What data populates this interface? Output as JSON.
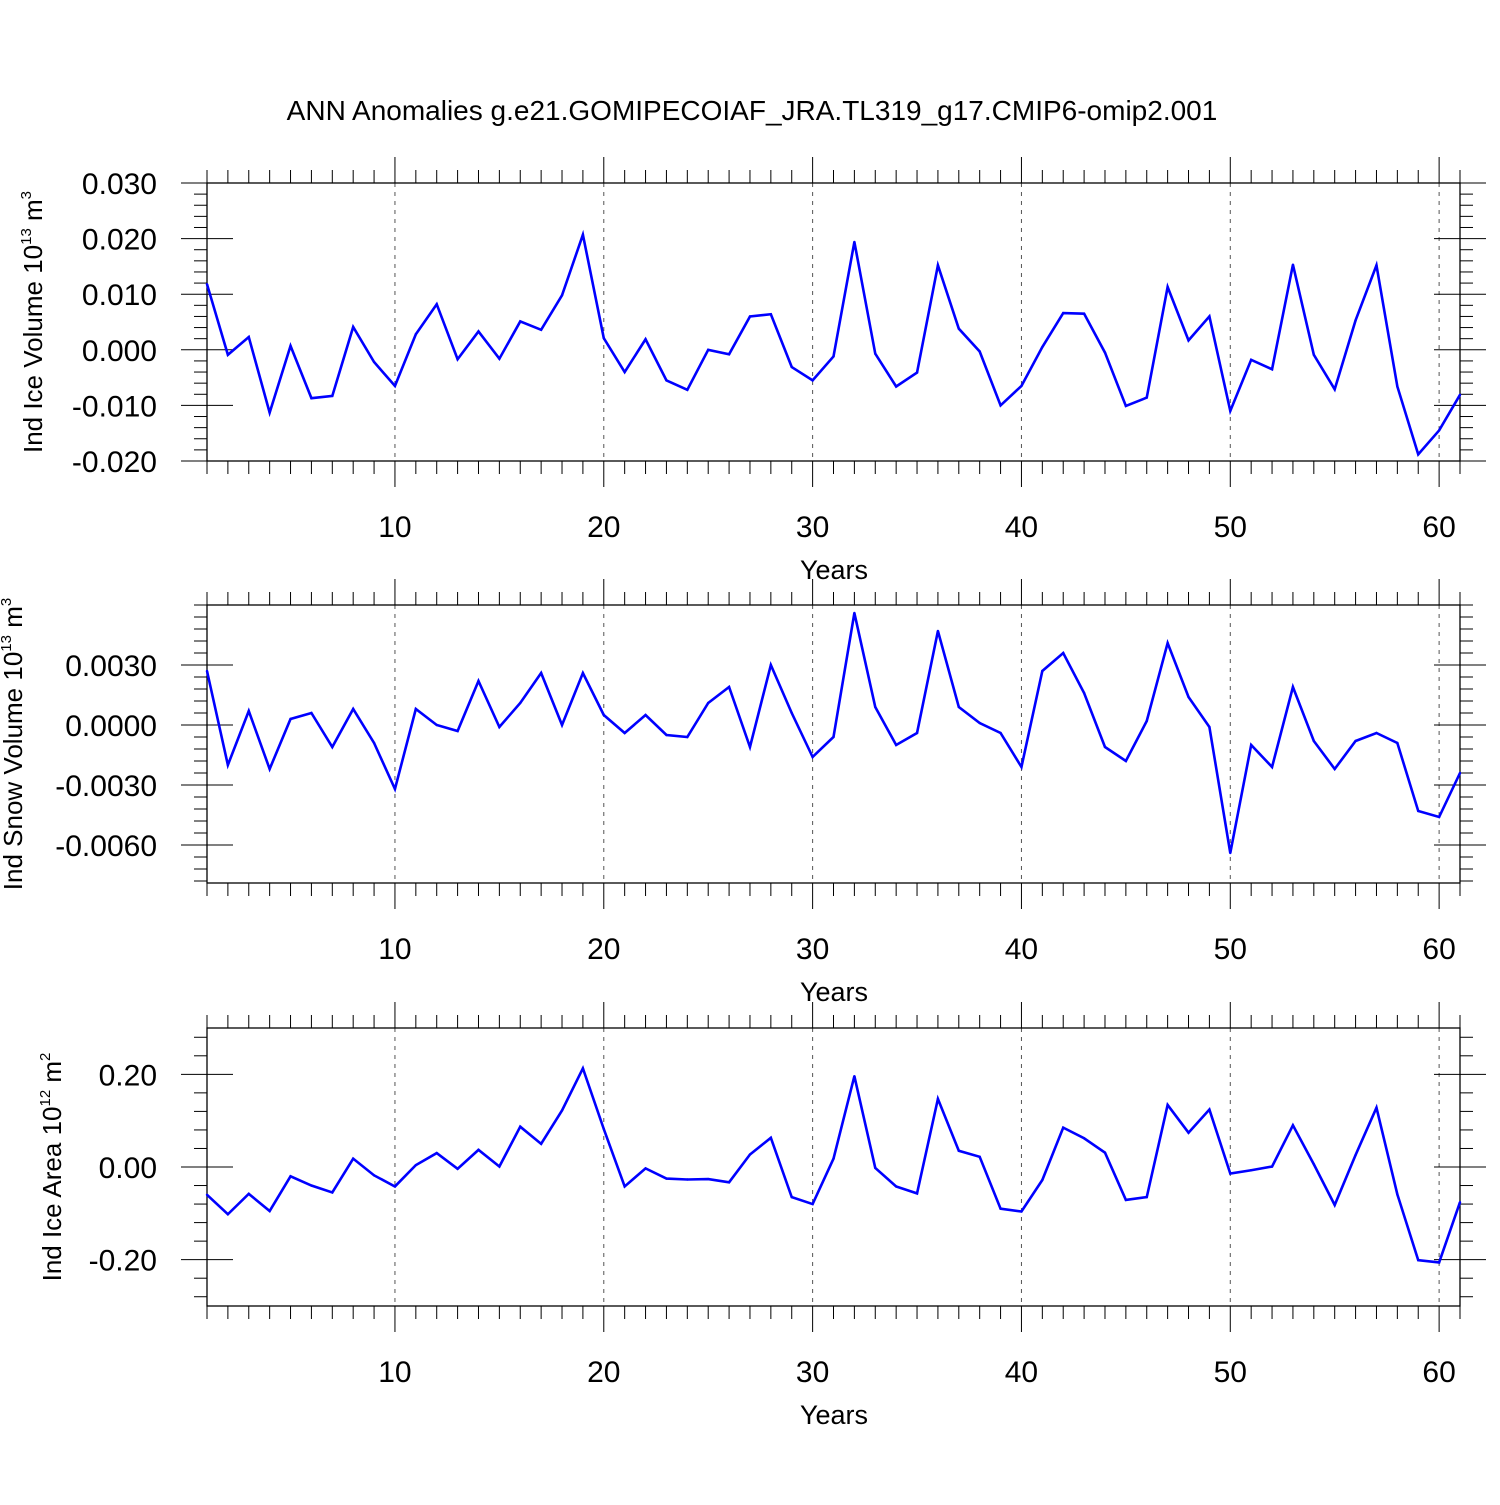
{
  "figure": {
    "title": "ANN Anomalies g.e21.GOMIPECOIAF_JRA.TL319_g17.CMIP6-omip2.001"
  },
  "colors": {
    "series": "#0000ff",
    "axis": "#000000",
    "grid": "#555555"
  },
  "chart_data": [
    {
      "type": "line",
      "xlabel": "Years",
      "ylabel_main": "Ind Ice Volume 10",
      "ylabel_exp": "13",
      "ylabel_unit": " m",
      "ylabel_unit_exp": "3",
      "xlim": [
        1,
        61
      ],
      "ylim": [
        -0.02,
        0.03
      ],
      "xticks": [
        10,
        20,
        30,
        40,
        50,
        60
      ],
      "xtick_labels": [
        "10",
        "20",
        "30",
        "40",
        "50",
        "60"
      ],
      "yticks": [
        -0.02,
        -0.01,
        0.0,
        0.01,
        0.02,
        0.03
      ],
      "ytick_labels": [
        "-0.020",
        "-0.010",
        "0.000",
        "0.010",
        "0.020",
        "0.030"
      ],
      "vertical_dashed_grid_at": [
        10,
        20,
        30,
        40,
        50,
        60
      ],
      "series": [
        {
          "x_start": 1,
          "values": [
            0.0118,
            -0.0009,
            0.0023,
            -0.0113,
            0.0007,
            -0.0087,
            -0.0083,
            0.0041,
            -0.0022,
            -0.0065,
            0.0028,
            0.0082,
            -0.0017,
            0.0033,
            -0.0016,
            0.0051,
            0.0036,
            0.0098,
            0.0207,
            0.0021,
            -0.004,
            0.0019,
            -0.0055,
            -0.0072,
            0.0,
            -0.0008,
            0.006,
            0.0064,
            -0.0031,
            -0.0055,
            -0.0012,
            0.0194,
            -0.0007,
            -0.0066,
            -0.0041,
            0.0152,
            0.0038,
            -0.0003,
            -0.01,
            -0.0065,
            0.0005,
            0.0066,
            0.0065,
            -0.0005,
            -0.0101,
            -0.0086,
            0.0113,
            0.0017,
            0.006,
            -0.011,
            -0.0018,
            -0.0035,
            0.0153,
            -0.0009,
            -0.0071,
            0.0053,
            0.0152,
            -0.0066,
            -0.0188,
            -0.0145,
            -0.0081
          ]
        }
      ]
    },
    {
      "type": "line",
      "xlabel": "Years",
      "ylabel_main": "Ind Snow Volume 10",
      "ylabel_exp": "13",
      "ylabel_unit": " m",
      "ylabel_unit_exp": "3",
      "xlim": [
        1,
        61
      ],
      "ylim": [
        -0.0079,
        0.006
      ],
      "xticks": [
        10,
        20,
        30,
        40,
        50,
        60
      ],
      "xtick_labels": [
        "10",
        "20",
        "30",
        "40",
        "50",
        "60"
      ],
      "yticks": [
        -0.006,
        -0.003,
        0.0,
        0.003
      ],
      "ytick_labels": [
        "-0.0060",
        "-0.0030",
        "0.0000",
        "0.0030"
      ],
      "vertical_dashed_grid_at": [
        10,
        20,
        30,
        40,
        50,
        60
      ],
      "series": [
        {
          "x_start": 1,
          "values": [
            0.0027,
            -0.002,
            0.0007,
            -0.0022,
            0.0003,
            0.0006,
            -0.0011,
            0.0008,
            -0.0009,
            -0.0032,
            0.0008,
            0.0,
            -0.0003,
            0.0022,
            -0.0001,
            0.0011,
            0.0026,
            -0.0,
            0.0026,
            0.0005,
            -0.0004,
            0.0005,
            -0.0005,
            -0.0006,
            0.0011,
            0.0019,
            -0.0011,
            0.003,
            0.0006,
            -0.0016,
            -0.0006,
            0.0056,
            0.0009,
            -0.001,
            -0.0004,
            0.0047,
            0.0009,
            0.0001,
            -0.0004,
            -0.0021,
            0.0027,
            0.0036,
            0.0016,
            -0.0011,
            -0.0018,
            0.0002,
            0.0041,
            0.0014,
            -0.0001,
            -0.0064,
            -0.001,
            -0.0021,
            0.0019,
            -0.0008,
            -0.0022,
            -0.0008,
            -0.0004,
            -0.0009,
            -0.0043,
            -0.0046,
            -0.0024
          ]
        }
      ]
    },
    {
      "type": "line",
      "xlabel": "Years",
      "ylabel_main": "Ind Ice Area 10",
      "ylabel_exp": "12",
      "ylabel_unit": " m",
      "ylabel_unit_exp": "2",
      "xlim": [
        1,
        61
      ],
      "ylim": [
        -0.3,
        0.3
      ],
      "xticks": [
        10,
        20,
        30,
        40,
        50,
        60
      ],
      "xtick_labels": [
        "10",
        "20",
        "30",
        "40",
        "50",
        "60"
      ],
      "yticks": [
        -0.2,
        0.0,
        0.2
      ],
      "ytick_labels": [
        "-0.20",
        "0.00",
        "0.20"
      ],
      "vertical_dashed_grid_at": [
        10,
        20,
        30,
        40,
        50,
        60
      ],
      "series": [
        {
          "x_start": 1,
          "values": [
            -0.06,
            -0.102,
            -0.058,
            -0.095,
            -0.02,
            -0.04,
            -0.055,
            0.018,
            -0.018,
            -0.042,
            0.004,
            0.03,
            -0.004,
            0.037,
            0.001,
            0.087,
            0.05,
            0.122,
            0.213,
            0.082,
            -0.042,
            -0.003,
            -0.025,
            -0.027,
            -0.026,
            -0.033,
            0.027,
            0.063,
            -0.065,
            -0.08,
            0.018,
            0.196,
            -0.002,
            -0.042,
            -0.057,
            0.147,
            0.035,
            0.022,
            -0.09,
            -0.096,
            -0.028,
            0.085,
            0.062,
            0.031,
            -0.071,
            -0.065,
            0.134,
            0.074,
            0.124,
            -0.014,
            -0.007,
            0.001,
            0.09,
            0.006,
            -0.082,
            0.026,
            0.128,
            -0.059,
            -0.201,
            -0.206,
            -0.076
          ]
        }
      ]
    }
  ]
}
